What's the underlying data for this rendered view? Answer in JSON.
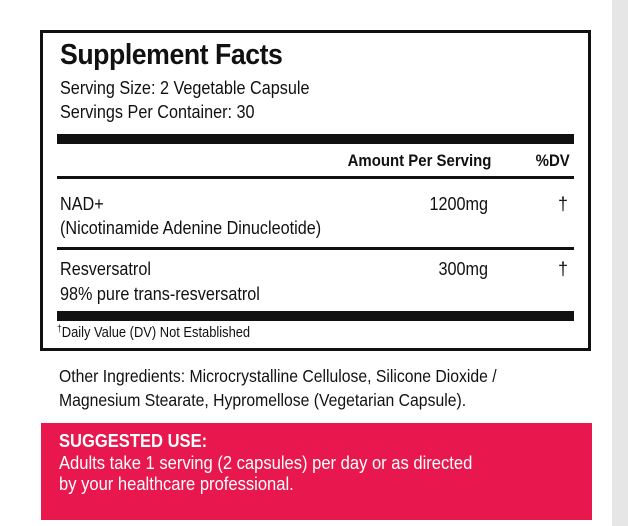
{
  "panel": {
    "title": "Supplement Facts",
    "serving_size": "Serving Size: 2 Vegetable Capsule",
    "servings_per_container": "Servings Per Container: 30",
    "header_amount": "Amount Per Serving",
    "header_dv": "%DV",
    "rows": [
      {
        "name": "NAD+",
        "sub": "(Nicotinamide Adenine Dinucleotide)",
        "amount": "1200mg",
        "dv": "†"
      },
      {
        "name": "Resversatrol",
        "sub": "98% pure trans-resversatrol",
        "amount": "300mg",
        "dv": "†"
      }
    ],
    "footnote_mark": "†",
    "footnote": "Daily Value (DV) Not Established"
  },
  "other_ingredients": {
    "line1": "Other Ingredients: Microcrystalline Cellulose, Silicone Dioxide /",
    "line2": "Magnesium Stearate, Hypromellose (Vegetarian Capsule)."
  },
  "suggested_use": {
    "title": "SUGGESTED USE:",
    "line1": "Adults take 1 serving (2 capsules) per day or as directed",
    "line2": "by your healthcare professional."
  },
  "colors": {
    "accent": "#e8184f",
    "text": "#111111"
  }
}
